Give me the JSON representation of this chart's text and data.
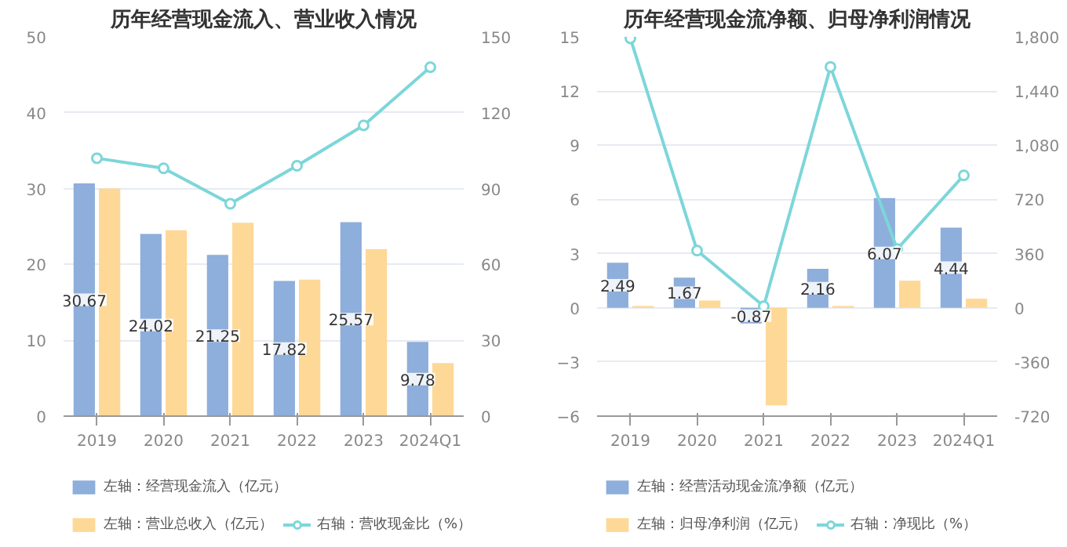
{
  "chart_data": [
    {
      "type": "bar",
      "title": "历年经营现金流入、营业收入情况",
      "categories": [
        "2019",
        "2020",
        "2021",
        "2022",
        "2023",
        "2024Q1"
      ],
      "ylim": [
        0,
        50
      ],
      "yticks": [
        0,
        10,
        20,
        30,
        40,
        50
      ],
      "y2lim": [
        0,
        150
      ],
      "y2ticks": [
        0,
        30,
        60,
        90,
        120,
        150
      ],
      "grid": "y",
      "legend": "bottom",
      "series": [
        {
          "name": "左轴：经营现金流入（亿元）",
          "color": "#8eaedb",
          "values": [
            30.67,
            24.02,
            21.25,
            17.82,
            25.57,
            9.78
          ],
          "value_labels": [
            "30.67",
            "24.02",
            "21.25",
            "17.82",
            "25.57",
            "9.78"
          ]
        },
        {
          "name": "左轴：营业总收入（亿元）",
          "color": "#fdd897",
          "values": [
            30,
            24.5,
            25.5,
            18,
            22,
            7
          ]
        },
        {
          "name": "右轴：营收现金比（%）",
          "type": "line",
          "axis": "y2",
          "marker": "circle",
          "color": "#7dd6d9",
          "values": [
            102,
            98,
            84,
            99,
            115,
            138
          ]
        }
      ]
    },
    {
      "type": "bar",
      "title": "历年经营现金流净额、归母净利润情况",
      "categories": [
        "2019",
        "2020",
        "2021",
        "2022",
        "2023",
        "2024Q1"
      ],
      "ylim": [
        -6,
        15
      ],
      "yticks": [
        -6,
        -3,
        0,
        3,
        6,
        9,
        12,
        15
      ],
      "y2lim": [
        -720,
        1800
      ],
      "y2ticks": [
        {
          "value": -720,
          "label": "-720"
        },
        {
          "value": -360,
          "label": "-360"
        },
        0,
        360,
        720,
        {
          "value": 1080,
          "label": "1,080"
        },
        {
          "value": 1440,
          "label": "1,440"
        },
        {
          "value": 1800,
          "label": "1,800"
        }
      ],
      "grid": "y",
      "legend": "bottom",
      "series": [
        {
          "name": "左轴：经营活动现金流净额（亿元）",
          "color": "#8eaedb",
          "values": [
            2.49,
            1.67,
            -0.87,
            2.16,
            6.07,
            4.44
          ],
          "value_labels": [
            "2.49",
            "1.67",
            "-0.87",
            "2.16",
            "6.07",
            "4.44"
          ]
        },
        {
          "name": "左轴：归母净利润（亿元）",
          "color": "#fdd897",
          "values": [
            0.1,
            0.4,
            -5.4,
            0.1,
            1.5,
            0.5
          ]
        },
        {
          "name": "右轴：净现比（%）",
          "type": "line",
          "axis": "y2",
          "marker": "circle",
          "color": "#7dd6d9",
          "values": [
            1790,
            380,
            10,
            1600,
            390,
            880
          ]
        }
      ]
    }
  ]
}
